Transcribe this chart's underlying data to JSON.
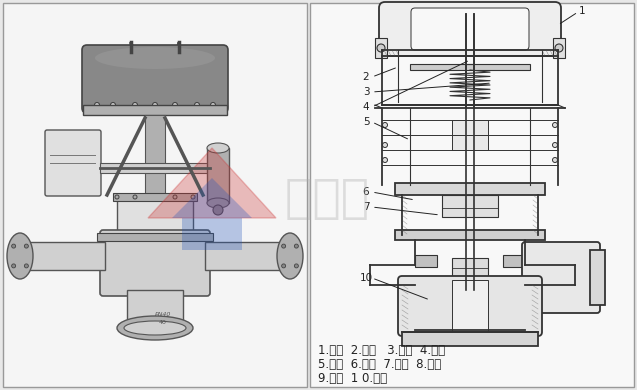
{
  "bg_color": "#e8e8e8",
  "left_panel_bg": "#f5f5f5",
  "right_panel_bg": "#f8f8f8",
  "border_color": "#999999",
  "watermark_text": "杜伯拉",
  "watermark_logo_red": "#cc3333",
  "watermark_logo_blue": "#2255bb",
  "watermark_alpha": 0.3,
  "legend_lines": [
    "1.膜盖  2.膜片   3.弹簧  4.推杆",
    "5.支架  6.阀杆  7.阀盖  8.阀芯",
    "9.阀座  1 0.阀体"
  ],
  "legend_fontsize": 8.5,
  "figure_width": 6.37,
  "figure_height": 3.9,
  "dpi": 100
}
